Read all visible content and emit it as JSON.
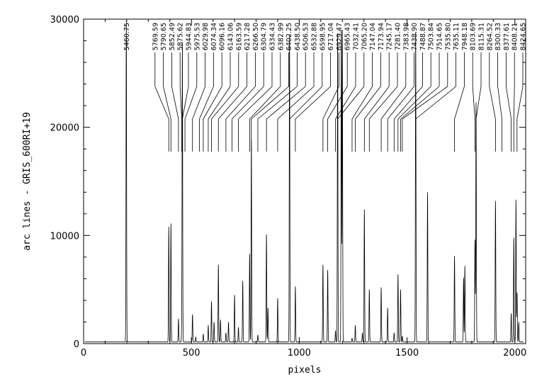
{
  "chart_data": {
    "type": "line",
    "xlabel": "pixels",
    "ylabel": "arc lines - GRIS_600RI+19",
    "xlim": [
      0,
      2050
    ],
    "ylim": [
      0,
      30000
    ],
    "x_ticks": [
      "0",
      "500",
      "1000",
      "1500",
      "2000"
    ],
    "y_ticks": [
      "0",
      "10000",
      "20000",
      "30000"
    ],
    "grid": false,
    "baseline": 150,
    "series": [
      {
        "peaks": [
          [
            198,
            29800
          ],
          [
            395,
            10800
          ],
          [
            405,
            11100
          ],
          [
            440,
            2300
          ],
          [
            455,
            1100
          ],
          [
            458,
            27800
          ],
          [
            505,
            2700
          ],
          [
            520,
            600
          ],
          [
            555,
            900
          ],
          [
            578,
            1700
          ],
          [
            593,
            3900
          ],
          [
            605,
            2000
          ],
          [
            625,
            7300
          ],
          [
            635,
            2200
          ],
          [
            660,
            1000
          ],
          [
            672,
            2000
          ],
          [
            700,
            4500
          ],
          [
            718,
            1500
          ],
          [
            738,
            5800
          ],
          [
            770,
            8300
          ],
          [
            778,
            18800
          ],
          [
            808,
            800
          ],
          [
            848,
            10100
          ],
          [
            855,
            3300
          ],
          [
            900,
            4200
          ],
          [
            955,
            28600
          ],
          [
            982,
            5300
          ],
          [
            1110,
            7300
          ],
          [
            1132,
            6800
          ],
          [
            1168,
            1200
          ],
          [
            1178,
            28700
          ],
          [
            1195,
            29000
          ],
          [
            1200,
            29000
          ],
          [
            1245,
            500
          ],
          [
            1260,
            1700
          ],
          [
            1293,
            1000
          ],
          [
            1302,
            12400
          ],
          [
            1325,
            5000
          ],
          [
            1380,
            5200
          ],
          [
            1410,
            3300
          ],
          [
            1440,
            1000
          ],
          [
            1458,
            6400
          ],
          [
            1470,
            5000
          ],
          [
            1478,
            700
          ],
          [
            1540,
            28800
          ],
          [
            1595,
            14000
          ],
          [
            1720,
            8100
          ],
          [
            1762,
            6100
          ],
          [
            1768,
            7200
          ],
          [
            1815,
            9600
          ],
          [
            1820,
            22300
          ],
          [
            1910,
            13200
          ],
          [
            1983,
            2800
          ],
          [
            1995,
            9800
          ],
          [
            2005,
            13300
          ],
          [
            2010,
            4700
          ],
          [
            2018,
            2000
          ]
        ]
      }
    ],
    "line_ids": [
      {
        "label": "5460.75",
        "x": 198
      },
      {
        "label": "5769.59",
        "x": 395
      },
      {
        "label": "5790.65",
        "x": 405
      },
      {
        "label": "5852.49",
        "x": 440
      },
      {
        "label": "5875.62",
        "x": 455
      },
      {
        "label": "5944.83",
        "x": 458
      },
      {
        "label": "5975.53",
        "x": 470
      },
      {
        "label": "6029.98",
        "x": 505
      },
      {
        "label": "6074.34",
        "x": 537
      },
      {
        "label": "6096.16",
        "x": 555
      },
      {
        "label": "6143.06",
        "x": 578
      },
      {
        "label": "6163.59",
        "x": 593
      },
      {
        "label": "6217.28",
        "x": 625
      },
      {
        "label": "6266.50",
        "x": 660
      },
      {
        "label": "6304.79",
        "x": 688
      },
      {
        "label": "6334.43",
        "x": 718
      },
      {
        "label": "6382.99",
        "x": 770
      },
      {
        "label": "6402.25",
        "x": 778
      },
      {
        "label": "6438.50",
        "x": 808
      },
      {
        "label": "6506.53",
        "x": 848
      },
      {
        "label": "6532.88",
        "x": 900
      },
      {
        "label": "6598.95",
        "x": 955
      },
      {
        "label": "6717.04",
        "x": 982
      },
      {
        "label": "6929.47",
        "x": 1110
      },
      {
        "label": "6965.43",
        "x": 1132
      },
      {
        "label": "7032.41",
        "x": 1168
      },
      {
        "label": "7065.20",
        "x": 1178
      },
      {
        "label": "7147.04",
        "x": 1245
      },
      {
        "label": "7173.94",
        "x": 1260
      },
      {
        "label": "7245.17",
        "x": 1302
      },
      {
        "label": "7281.40",
        "x": 1325
      },
      {
        "label": "7383.98",
        "x": 1380
      },
      {
        "label": "7438.90",
        "x": 1410
      },
      {
        "label": "7488.87",
        "x": 1440
      },
      {
        "label": "7503.84",
        "x": 1458
      },
      {
        "label": "7514.65",
        "x": 1470
      },
      {
        "label": "7535.80",
        "x": 1478
      },
      {
        "label": "7635.11",
        "x": 1540
      },
      {
        "label": "7948.18",
        "x": 1720
      },
      {
        "label": "8103.69",
        "x": 1815
      },
      {
        "label": "8115.31",
        "x": 1820
      },
      {
        "label": "8264.52",
        "x": 1910
      },
      {
        "label": "8300.33",
        "x": 1940
      },
      {
        "label": "8377.61",
        "x": 1983
      },
      {
        "label": "8408.21",
        "x": 1995
      },
      {
        "label": "8424.65",
        "x": 2010
      }
    ]
  }
}
